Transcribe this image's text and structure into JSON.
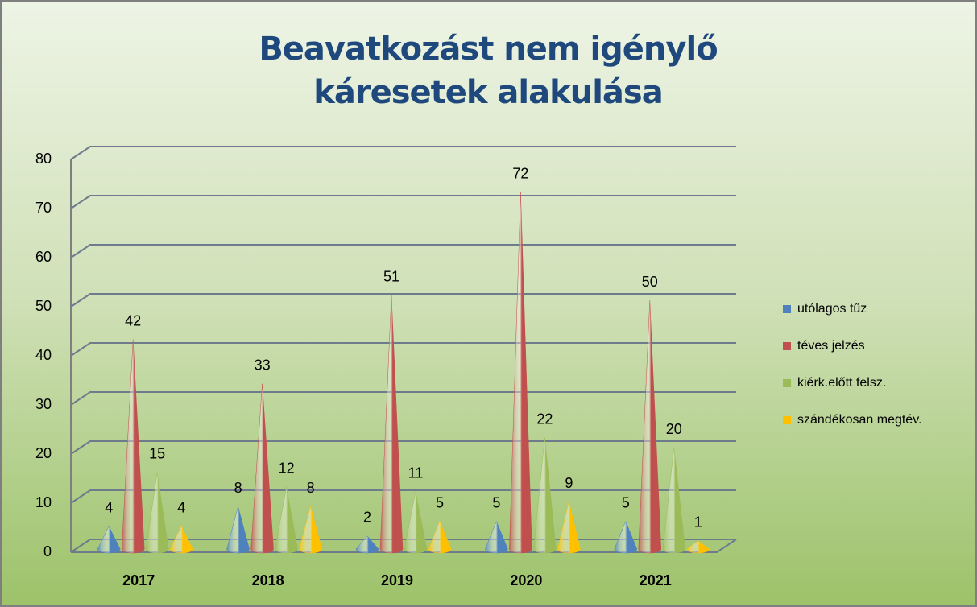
{
  "chart_data": {
    "type": "cone",
    "title": "Beavatkozást nem igénylő káresetek alakulása",
    "categories": [
      "2017",
      "2018",
      "2019",
      "2020",
      "2021"
    ],
    "series": [
      {
        "name": "utólagos tűz",
        "color": "#4f81bd",
        "values": [
          4,
          8,
          2,
          5,
          5
        ]
      },
      {
        "name": "téves jelzés",
        "color": "#c0504d",
        "values": [
          42,
          33,
          51,
          72,
          50
        ]
      },
      {
        "name": "kiérk.előtt felsz.",
        "color": "#9bbb59",
        "values": [
          15,
          12,
          11,
          22,
          20
        ]
      },
      {
        "name": "szándékosan megtév.",
        "color": "#ffc000",
        "values": [
          4,
          8,
          5,
          9,
          1
        ]
      }
    ],
    "ylim": [
      0,
      80
    ],
    "yticks": [
      0,
      10,
      20,
      30,
      40,
      50,
      60,
      70,
      80
    ],
    "grid": true,
    "legend": "right"
  }
}
